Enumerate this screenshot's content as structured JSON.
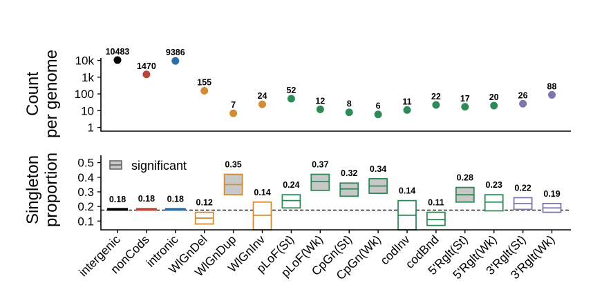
{
  "chart_data": [
    {
      "type": "scatter",
      "scale": "log10",
      "ylabel_lines": [
        "Count",
        "per genome"
      ],
      "ytick_labels": [
        "10k",
        "1k",
        "100",
        "10",
        "1"
      ],
      "ytick_values": [
        10000,
        1000,
        100,
        10,
        1
      ],
      "ylim": [
        0.6,
        14000
      ],
      "categories": [
        "intergenic",
        "nonCods",
        "intronic",
        "WlGnDel",
        "WlGnDup",
        "WlGnInv",
        "pLoF(St)",
        "pLoF(Wk)",
        "CpGn(St)",
        "CpGn(Wk)",
        "codInv",
        "codBnd",
        "5'Rglt(St)",
        "5'Rglt(Wk)",
        "3'Rglt(St)",
        "3'Rglt(Wk)"
      ],
      "values": [
        10483,
        1470,
        9386,
        155,
        7,
        24,
        52,
        12,
        8,
        6,
        11,
        22,
        17,
        20,
        26,
        88
      ],
      "labels": [
        "10483",
        "1470",
        "9386",
        "155",
        "7",
        "24",
        "52",
        "12",
        "8",
        "6",
        "11",
        "22",
        "17",
        "20",
        "26",
        "88"
      ],
      "colors": [
        "#000000",
        "#b5463a",
        "#2e6ea6",
        "#d48b35",
        "#d48b35",
        "#d48b35",
        "#2e8b57",
        "#2e8b57",
        "#2e8b57",
        "#2e8b57",
        "#2e8b57",
        "#2e8b57",
        "#2e8b57",
        "#2e8b57",
        "#7b78ad",
        "#7b78ad"
      ]
    },
    {
      "type": "box",
      "ylabel_lines": [
        "Singleton",
        "proportion"
      ],
      "ytick_labels": [
        "0.5",
        "0.4",
        "0.3",
        "0.2",
        "0.1"
      ],
      "ytick_values": [
        0.5,
        0.4,
        0.3,
        0.2,
        0.1
      ],
      "ylim": [
        0.04,
        0.55
      ],
      "reference_line": 0.175,
      "legend_label": "significant",
      "categories": [
        "intergenic",
        "nonCods",
        "intronic",
        "WlGnDel",
        "WlGnDup",
        "WlGnInv",
        "pLoF(St)",
        "pLoF(Wk)",
        "CpGn(St)",
        "CpGn(Wk)",
        "codInv",
        "codBnd",
        "5'Rglt(St)",
        "5'Rglt(Wk)",
        "3'Rglt(St)",
        "3'Rglt(Wk)"
      ],
      "values": [
        0.18,
        0.18,
        0.18,
        0.12,
        0.35,
        0.14,
        0.24,
        0.37,
        0.32,
        0.34,
        0.14,
        0.11,
        0.28,
        0.23,
        0.22,
        0.19
      ],
      "labels": [
        "0.18",
        "0.18",
        "0.18",
        "0.12",
        "0.35",
        "0.14",
        "0.24",
        "0.37",
        "0.32",
        "0.34",
        "0.14",
        "0.11",
        "0.28",
        "0.23",
        "0.22",
        "0.19"
      ],
      "ci_lower": [
        0.178,
        0.174,
        0.176,
        0.08,
        0.28,
        0.04,
        0.19,
        0.31,
        0.27,
        0.29,
        0.04,
        0.07,
        0.23,
        0.17,
        0.18,
        0.16
      ],
      "ci_upper": [
        0.182,
        0.186,
        0.184,
        0.16,
        0.42,
        0.23,
        0.28,
        0.42,
        0.36,
        0.39,
        0.24,
        0.16,
        0.33,
        0.28,
        0.26,
        0.22
      ],
      "significant": [
        false,
        false,
        false,
        false,
        true,
        false,
        false,
        true,
        true,
        true,
        false,
        false,
        true,
        false,
        false,
        false
      ],
      "colors": [
        "#000000",
        "#b5463a",
        "#2e6ea6",
        "#d48b35",
        "#d48b35",
        "#d48b35",
        "#2e8b57",
        "#2e8b57",
        "#2e8b57",
        "#2e8b57",
        "#2e8b57",
        "#2e8b57",
        "#2e8b57",
        "#2e8b57",
        "#7b78ad",
        "#7b78ad"
      ]
    }
  ]
}
